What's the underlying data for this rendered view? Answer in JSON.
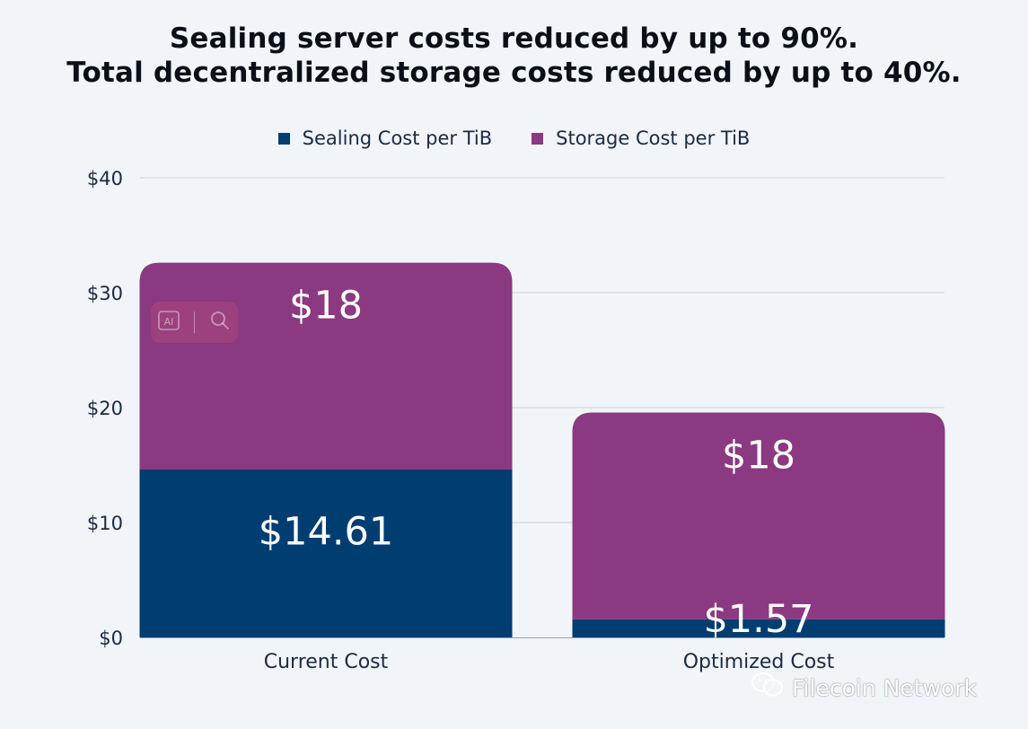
{
  "title_lines": [
    "Sealing server costs reduced by up to 90%.",
    "Total decentralized storage costs reduced by up to 40%."
  ],
  "colors": {
    "sealing": "#003d71",
    "storage": "#8b3980",
    "grid": "#c9ced6",
    "background": "#f1f5fa"
  },
  "watermark": {
    "text": "Filecoin Network",
    "icon": "wechat-icon"
  },
  "overlay": {
    "icons": [
      "ai-icon",
      "search-icon"
    ]
  },
  "chart_data": {
    "type": "bar",
    "stacked": true,
    "title": "Sealing server costs reduced by up to 90%. Total decentralized storage costs reduced by up to 40%.",
    "categories": [
      "Current Cost",
      "Optimized Cost"
    ],
    "series": [
      {
        "name": "Sealing Cost per TiB",
        "values": [
          14.61,
          1.57
        ],
        "labels": [
          "$14.61",
          "$1.57"
        ]
      },
      {
        "name": "Storage Cost per TiB",
        "values": [
          18,
          18
        ],
        "labels": [
          "$18",
          "$18"
        ]
      }
    ],
    "ylim": [
      0,
      40
    ],
    "yticks": [
      {
        "value": 0,
        "label": "$0"
      },
      {
        "value": 10,
        "label": "$10"
      },
      {
        "value": 20,
        "label": "$20"
      },
      {
        "value": 30,
        "label": "$30"
      },
      {
        "value": 40,
        "label": "$40"
      }
    ],
    "grid": true,
    "legend": "top-center"
  }
}
